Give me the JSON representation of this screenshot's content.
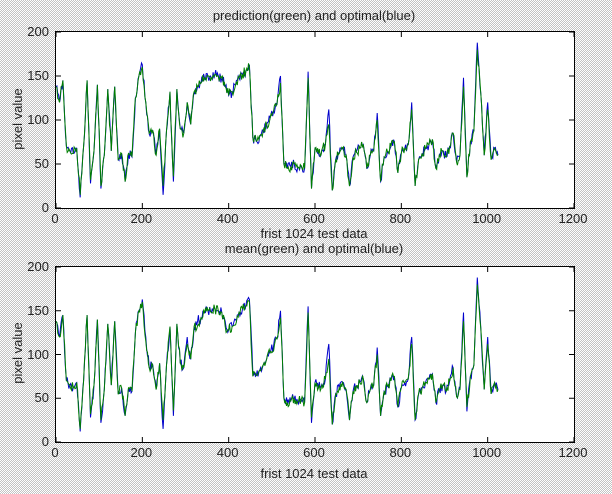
{
  "figure": {
    "background_color": "#c0c0c0",
    "plot_background_color": "#ffffff",
    "axis_color": "#000000"
  },
  "chart_data": [
    {
      "type": "line",
      "title": "prediction(green) and optimal(blue)",
      "xlabel": "frist 1024 test data",
      "ylabel": "pixel value",
      "xlim": [
        0,
        1200
      ],
      "ylim": [
        0,
        200
      ],
      "xticks": [
        0,
        200,
        400,
        600,
        800,
        1000,
        1200
      ],
      "yticks": [
        0,
        50,
        100,
        150,
        200
      ],
      "grid": false,
      "legend": "none (series identified in title)",
      "x": [
        0,
        8,
        16,
        24,
        32,
        40,
        48,
        56,
        64,
        72,
        80,
        88,
        96,
        104,
        112,
        120,
        128,
        136,
        144,
        152,
        160,
        168,
        176,
        184,
        192,
        200,
        208,
        216,
        224,
        232,
        240,
        248,
        256,
        264,
        272,
        280,
        288,
        296,
        304,
        312,
        320,
        328,
        336,
        344,
        352,
        360,
        368,
        376,
        384,
        392,
        400,
        408,
        416,
        424,
        432,
        440,
        448,
        456,
        464,
        472,
        480,
        488,
        496,
        504,
        512,
        520,
        528,
        536,
        544,
        552,
        560,
        568,
        576,
        584,
        592,
        600,
        608,
        616,
        624,
        632,
        640,
        648,
        656,
        664,
        672,
        680,
        688,
        696,
        704,
        712,
        720,
        728,
        736,
        744,
        752,
        760,
        768,
        776,
        784,
        792,
        800,
        808,
        816,
        824,
        832,
        840,
        848,
        856,
        864,
        872,
        880,
        888,
        896,
        904,
        912,
        920,
        928,
        936,
        944,
        952,
        960,
        968,
        976,
        984,
        992,
        1000,
        1008,
        1016,
        1024
      ],
      "series": [
        {
          "name": "optimal",
          "color": "#0000cc",
          "values": [
            138,
            120,
            145,
            70,
            65,
            62,
            68,
            12,
            70,
            145,
            28,
            65,
            140,
            22,
            60,
            135,
            65,
            138,
            55,
            62,
            30,
            62,
            58,
            125,
            150,
            163,
            120,
            85,
            88,
            60,
            90,
            15,
            88,
            132,
            30,
            135,
            90,
            85,
            120,
            95,
            132,
            138,
            142,
            148,
            150,
            148,
            152,
            150,
            148,
            138,
            128,
            132,
            140,
            148,
            152,
            156,
            163,
            80,
            76,
            82,
            88,
            95,
            102,
            110,
            118,
            150,
            50,
            45,
            47,
            50,
            46,
            48,
            45,
            155,
            22,
            68,
            62,
            66,
            72,
            112,
            20,
            55,
            62,
            68,
            60,
            25,
            58,
            64,
            68,
            72,
            45,
            60,
            65,
            108,
            30,
            58,
            64,
            70,
            75,
            40,
            62,
            68,
            72,
            120,
            25,
            55,
            62,
            68,
            72,
            78,
            45,
            60,
            65,
            58,
            70,
            85,
            52,
            60,
            148,
            35,
            75,
            88,
            188,
            130,
            60,
            120,
            55,
            68,
            60
          ]
        },
        {
          "name": "prediction",
          "color": "#007f00",
          "values": [
            138,
            120,
            145,
            70,
            65,
            62,
            68,
            15,
            70,
            145,
            32,
            65,
            140,
            25,
            60,
            135,
            65,
            138,
            55,
            62,
            30,
            62,
            58,
            125,
            150,
            160,
            120,
            85,
            88,
            60,
            90,
            25,
            88,
            132,
            36,
            135,
            90,
            85,
            120,
            95,
            132,
            138,
            142,
            148,
            150,
            148,
            152,
            150,
            148,
            138,
            128,
            132,
            140,
            148,
            152,
            156,
            160,
            80,
            76,
            82,
            88,
            95,
            102,
            110,
            118,
            142,
            50,
            45,
            47,
            50,
            46,
            48,
            45,
            148,
            22,
            68,
            62,
            66,
            72,
            95,
            20,
            55,
            62,
            68,
            60,
            25,
            58,
            64,
            68,
            72,
            45,
            60,
            65,
            100,
            30,
            58,
            64,
            70,
            75,
            40,
            62,
            68,
            72,
            112,
            25,
            55,
            62,
            68,
            72,
            78,
            45,
            60,
            65,
            58,
            70,
            85,
            52,
            60,
            138,
            35,
            75,
            88,
            180,
            130,
            60,
            112,
            55,
            68,
            60
          ]
        }
      ]
    },
    {
      "type": "line",
      "title": "mean(green) and optimal(blue)",
      "xlabel": "frist 1024 test data",
      "ylabel": "pixel value",
      "xlim": [
        0,
        1200
      ],
      "ylim": [
        0,
        200
      ],
      "xticks": [
        0,
        200,
        400,
        600,
        800,
        1000,
        1200
      ],
      "yticks": [
        0,
        50,
        100,
        150,
        200
      ],
      "grid": false,
      "legend": "none (series identified in title)",
      "x": [
        0,
        8,
        16,
        24,
        32,
        40,
        48,
        56,
        64,
        72,
        80,
        88,
        96,
        104,
        112,
        120,
        128,
        136,
        144,
        152,
        160,
        168,
        176,
        184,
        192,
        200,
        208,
        216,
        224,
        232,
        240,
        248,
        256,
        264,
        272,
        280,
        288,
        296,
        304,
        312,
        320,
        328,
        336,
        344,
        352,
        360,
        368,
        376,
        384,
        392,
        400,
        408,
        416,
        424,
        432,
        440,
        448,
        456,
        464,
        472,
        480,
        488,
        496,
        504,
        512,
        520,
        528,
        536,
        544,
        552,
        560,
        568,
        576,
        584,
        592,
        600,
        608,
        616,
        624,
        632,
        640,
        648,
        656,
        664,
        672,
        680,
        688,
        696,
        704,
        712,
        720,
        728,
        736,
        744,
        752,
        760,
        768,
        776,
        784,
        792,
        800,
        808,
        816,
        824,
        832,
        840,
        848,
        856,
        864,
        872,
        880,
        888,
        896,
        904,
        912,
        920,
        928,
        936,
        944,
        952,
        960,
        968,
        976,
        984,
        992,
        1000,
        1008,
        1016,
        1024
      ],
      "series": [
        {
          "name": "optimal",
          "color": "#0000cc",
          "values": [
            138,
            120,
            145,
            70,
            65,
            62,
            68,
            12,
            70,
            145,
            28,
            65,
            140,
            22,
            60,
            135,
            65,
            138,
            55,
            62,
            30,
            62,
            58,
            125,
            150,
            163,
            120,
            85,
            88,
            60,
            90,
            15,
            88,
            132,
            30,
            135,
            90,
            85,
            120,
            95,
            132,
            138,
            142,
            148,
            150,
            148,
            152,
            150,
            148,
            138,
            128,
            132,
            140,
            148,
            152,
            156,
            163,
            80,
            76,
            82,
            88,
            95,
            102,
            110,
            118,
            150,
            50,
            45,
            47,
            50,
            46,
            48,
            45,
            155,
            22,
            68,
            62,
            66,
            72,
            112,
            20,
            55,
            62,
            68,
            60,
            25,
            58,
            64,
            68,
            72,
            45,
            60,
            65,
            108,
            30,
            58,
            64,
            70,
            75,
            40,
            62,
            68,
            72,
            120,
            25,
            55,
            62,
            68,
            72,
            78,
            45,
            60,
            65,
            58,
            70,
            85,
            52,
            60,
            148,
            35,
            75,
            88,
            188,
            130,
            60,
            120,
            55,
            68,
            60
          ]
        },
        {
          "name": "mean",
          "color": "#007f00",
          "values": [
            138,
            120,
            145,
            70,
            65,
            62,
            68,
            15,
            70,
            145,
            32,
            65,
            140,
            25,
            60,
            135,
            65,
            138,
            55,
            62,
            30,
            62,
            58,
            125,
            150,
            160,
            115,
            85,
            88,
            60,
            90,
            25,
            88,
            132,
            36,
            135,
            90,
            85,
            112,
            95,
            132,
            133,
            142,
            148,
            150,
            148,
            152,
            150,
            148,
            132,
            128,
            132,
            134,
            148,
            152,
            156,
            160,
            75,
            76,
            82,
            88,
            95,
            102,
            104,
            118,
            142,
            50,
            45,
            47,
            50,
            46,
            48,
            45,
            148,
            28,
            68,
            62,
            66,
            72,
            95,
            20,
            55,
            62,
            68,
            60,
            25,
            58,
            64,
            68,
            72,
            45,
            60,
            65,
            100,
            30,
            58,
            64,
            70,
            75,
            40,
            62,
            68,
            72,
            112,
            25,
            55,
            62,
            68,
            72,
            78,
            45,
            60,
            65,
            58,
            70,
            85,
            52,
            60,
            138,
            40,
            75,
            88,
            180,
            130,
            60,
            112,
            55,
            68,
            60
          ]
        }
      ]
    }
  ]
}
